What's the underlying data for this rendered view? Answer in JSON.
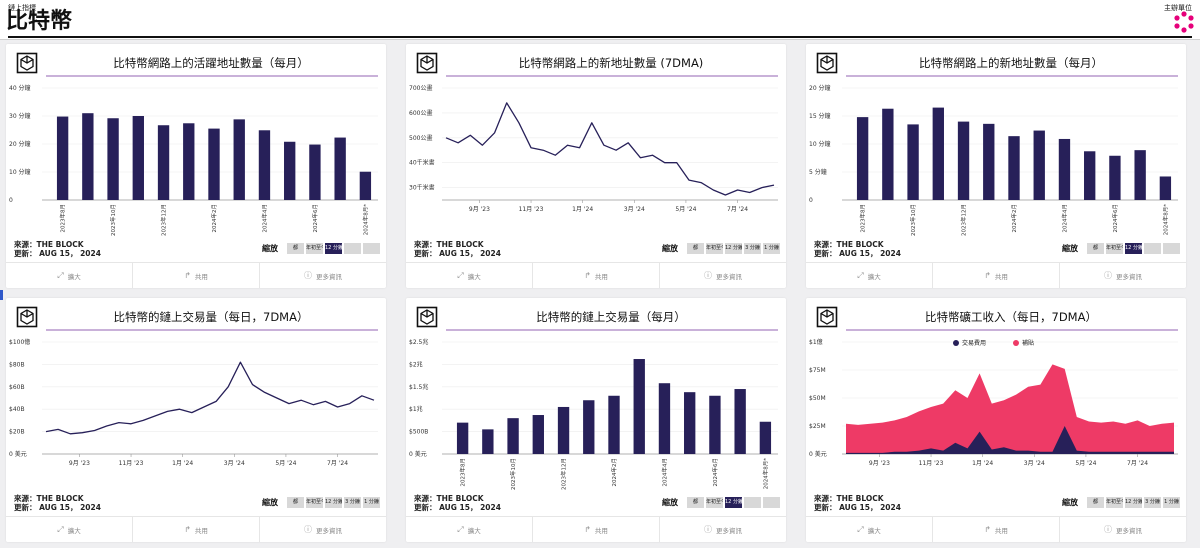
{
  "header": {
    "kicker": "鏈上指標",
    "title": "比特幣",
    "sponsor": "主辦單位"
  },
  "common": {
    "source_line1": "來源：THE BLOCK",
    "source_line2": "更新： AUG 15， 2024",
    "zoom_label": "縮放",
    "actions": [
      "擴大",
      "共用",
      "更多資訊"
    ],
    "icons": [
      "expand-icon",
      "share-icon",
      "info-icon"
    ],
    "bar_color": "#272059",
    "line_color": "#272059",
    "fee_color": "#272059",
    "subsidy_color": "#ee3a66"
  },
  "charts": [
    {
      "title": "比特幣網路上的活躍地址數量（每月）",
      "zoom_buttons": [
        "都",
        "年初至今",
        "12 分鐘",
        "",
        ""
      ],
      "zoom_selected": 2,
      "chart_data": {
        "type": "bar",
        "categories": [
          "2023年8月",
          "",
          "2023年10月",
          "",
          "2023年12月",
          "",
          "2024年2月",
          "",
          "2024年4月",
          "",
          "2024年6月",
          "",
          "2024年8月*"
        ],
        "values": [
          29.8,
          31,
          29.2,
          30,
          26.7,
          27.4,
          25.5,
          28.8,
          24.9,
          20.8,
          19.8,
          22.3,
          10.1
        ],
        "ylim": [
          0,
          40
        ],
        "yticks": [
          0,
          10,
          20,
          30,
          40
        ],
        "ytick_labels": [
          "0",
          "10 分鐘",
          "20 分鐘",
          "30 分鐘",
          "40 分鐘"
        ],
        "title": "比特幣網路上的活躍地址數量（每月）",
        "xlabel": "",
        "ylabel": ""
      }
    },
    {
      "title": "比特幣網路上的新地址數量 (7DMA)",
      "zoom_buttons": [
        "都",
        "年初至今",
        "12 分鐘",
        "3 分鐘",
        "1 分鐘"
      ],
      "zoom_selected": -1,
      "chart_data": {
        "type": "line",
        "x": [
          0,
          2,
          4,
          6,
          8,
          10,
          12,
          14,
          16,
          18,
          20,
          22,
          24,
          26,
          28,
          30,
          32,
          34,
          36,
          38,
          40,
          42,
          44,
          46,
          48,
          50,
          52,
          54
        ],
        "values": [
          500,
          480,
          510,
          470,
          520,
          640,
          560,
          460,
          450,
          430,
          470,
          460,
          560,
          470,
          450,
          480,
          420,
          430,
          400,
          400,
          330,
          320,
          290,
          270,
          290,
          280,
          300,
          310
        ],
        "xticks": [
          5.5,
          14,
          22.5,
          31,
          39.5,
          48
        ],
        "xtick_labels": [
          "9月 '23",
          "11月 '23",
          "1月 '24",
          "3月 '24",
          "5月 '24",
          "7月 '24"
        ],
        "ylim": [
          250,
          700
        ],
        "yticks": [
          300,
          400,
          500,
          600,
          700
        ],
        "ytick_labels": [
          "30千米書",
          "40千米書",
          "500公畫",
          "600公畫",
          "700公畫"
        ],
        "title": "比特幣網路上的新地址數量 (7DMA)",
        "xlabel": "",
        "ylabel": ""
      }
    },
    {
      "title": "比特幣網路上的新地址數量（每月）",
      "zoom_buttons": [
        "都",
        "年初至今",
        "12 分鐘",
        "",
        ""
      ],
      "zoom_selected": 2,
      "chart_data": {
        "type": "bar",
        "categories": [
          "2023年8月",
          "",
          "2023年10月",
          "",
          "2023年12月",
          "",
          "2024年2月",
          "",
          "2024年4月",
          "",
          "2024年6月",
          "",
          "2024年8月*"
        ],
        "values": [
          14.8,
          16.3,
          13.5,
          16.5,
          14,
          13.6,
          11.4,
          12.4,
          10.9,
          8.7,
          7.9,
          8.9,
          4.2
        ],
        "ylim": [
          0,
          20
        ],
        "yticks": [
          0,
          5,
          10,
          15,
          20
        ],
        "ytick_labels": [
          "0",
          "5 分鐘",
          "10 分鐘",
          "15 分鐘",
          "20 分鐘"
        ],
        "title": "比特幣網路上的新地址數量（每月）",
        "xlabel": "",
        "ylabel": ""
      }
    },
    {
      "title": "比特幣的鏈上交易量（每日，7DMA）",
      "zoom_buttons": [
        "都",
        "年初至今",
        "12 分鐘",
        "3 分鐘",
        "1 分鐘"
      ],
      "zoom_selected": -1,
      "chart_data": {
        "type": "line",
        "x": [
          0,
          2,
          4,
          6,
          8,
          10,
          12,
          14,
          16,
          18,
          20,
          22,
          24,
          26,
          28,
          30,
          32,
          34,
          36,
          38,
          40,
          42,
          44,
          46,
          48,
          50,
          52,
          54
        ],
        "values": [
          20,
          22,
          18,
          19,
          21,
          25,
          28,
          27,
          30,
          34,
          38,
          40,
          37,
          42,
          47,
          60,
          82,
          62,
          55,
          50,
          45,
          48,
          44,
          47,
          42,
          45,
          52,
          48
        ],
        "xticks": [
          5.5,
          14,
          22.5,
          31,
          39.5,
          48
        ],
        "xtick_labels": [
          "9月 '23",
          "11月 '23",
          "1月 '24",
          "3月 '24",
          "5月 '24",
          "7月 '24"
        ],
        "ylim": [
          0,
          100
        ],
        "yticks": [
          0,
          20,
          40,
          60,
          80,
          100
        ],
        "ytick_labels": [
          "0 美元",
          "$20B",
          "$40B",
          "$60B",
          "$80B",
          "$100億"
        ],
        "title": "比特幣的鏈上交易量（每日，7DMA）",
        "xlabel": "",
        "ylabel": ""
      }
    },
    {
      "title": "比特幣的鏈上交易量（每月）",
      "zoom_buttons": [
        "都",
        "年初至今",
        "12 分鐘",
        "",
        ""
      ],
      "zoom_selected": 2,
      "chart_data": {
        "type": "bar",
        "categories": [
          "2023年8月",
          "",
          "2023年10月",
          "",
          "2023年12月",
          "",
          "2024年2月",
          "",
          "2024年4月",
          "",
          "2024年6月",
          "",
          "2024年8月*"
        ],
        "values": [
          0.7,
          0.55,
          0.8,
          0.87,
          1.05,
          1.2,
          1.3,
          2.12,
          1.58,
          1.38,
          1.3,
          1.45,
          0.72
        ],
        "ylim": [
          0,
          2.5
        ],
        "yticks": [
          0,
          0.5,
          1,
          1.5,
          2,
          2.5
        ],
        "ytick_labels": [
          "0 美元",
          "$500B",
          "$1兆",
          "$1.5兆",
          "$2兆",
          "$2.5兆"
        ],
        "title": "比特幣的鏈上交易量（每月）",
        "xlabel": "",
        "ylabel": ""
      }
    },
    {
      "title": "比特幣礦工收入（每日，7DMA）",
      "zoom_buttons": [
        "都",
        "年初至今",
        "12 分鐘",
        "3 分鐘",
        "1 分鐘"
      ],
      "zoom_selected": -1,
      "chart_data": {
        "type": "area",
        "x": [
          0,
          2,
          4,
          6,
          8,
          10,
          12,
          14,
          16,
          18,
          20,
          22,
          24,
          26,
          28,
          30,
          32,
          34,
          36,
          38,
          40,
          42,
          44,
          46,
          48,
          50,
          52,
          54
        ],
        "legend": [
          "交易費用",
          "補貼"
        ],
        "series": [
          {
            "name": "交易費用",
            "values": [
              1,
              1,
              1,
              1,
              2,
              2,
              3,
              5,
              3,
              10,
              5,
              20,
              4,
              6,
              3,
              3,
              2,
              2,
              25,
              3,
              2,
              2,
              2,
              2,
              2,
              2,
              2,
              2
            ]
          },
          {
            "name": "補貼",
            "values": [
              27,
              26,
              27,
              28,
              30,
              33,
              38,
              42,
              45,
              57,
              50,
              72,
              45,
              48,
              53,
              60,
              62,
              80,
              76,
              33,
              29,
              28,
              29,
              27,
              30,
              25,
              27,
              28
            ]
          }
        ],
        "xticks": [
          5.5,
          14,
          22.5,
          31,
          39.5,
          48
        ],
        "xtick_labels": [
          "9月 '23",
          "11月 '23",
          "1月 '24",
          "3月 '24",
          "5月 '24",
          "7月 '24"
        ],
        "ylim": [
          0,
          100
        ],
        "yticks": [
          0,
          25,
          50,
          75,
          100
        ],
        "ytick_labels": [
          "0 美元",
          "$25M",
          "$50M",
          "$75M",
          "$1億"
        ],
        "title": "比特幣礦工收入（每日，7DMA）",
        "xlabel": "",
        "ylabel": ""
      }
    }
  ]
}
